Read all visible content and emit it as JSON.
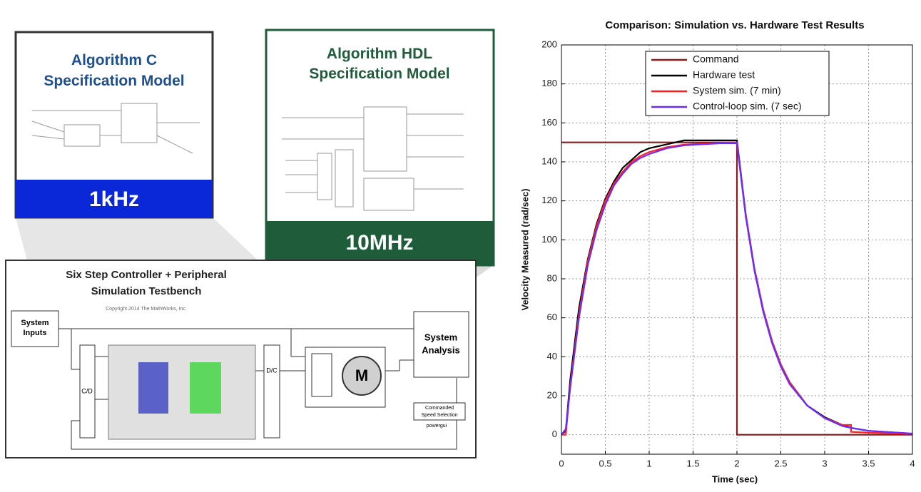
{
  "chart_data": {
    "type": "line",
    "title": "Comparison: Simulation vs. Hardware Test Results",
    "x_label": "Time (sec)",
    "y_label": "Velocity Measured (rad/sec)",
    "x": [
      0,
      0.05,
      0.1,
      0.2,
      0.3,
      0.4,
      0.5,
      0.6,
      0.7,
      0.8,
      0.9,
      1.0,
      1.2,
      1.4,
      1.6,
      1.8,
      2.0,
      2.0,
      2.1,
      2.2,
      2.3,
      2.4,
      2.5,
      2.6,
      2.8,
      3.0,
      3.2,
      3.3,
      3.3,
      3.5,
      4.0
    ],
    "series": [
      {
        "name": "Command",
        "color": "#8b1a1a",
        "values": [
          150,
          150,
          150,
          150,
          150,
          150,
          150,
          150,
          150,
          150,
          150,
          150,
          150,
          150,
          150,
          150,
          150,
          0,
          0,
          0,
          0,
          0,
          0,
          0,
          0,
          0,
          0,
          0,
          0,
          0,
          0
        ]
      },
      {
        "name": "Hardware test",
        "color": "#000000",
        "values": [
          0,
          2,
          28,
          65,
          90,
          108,
          121,
          130,
          137,
          141,
          145,
          147,
          149,
          151,
          151,
          151,
          151,
          151,
          113,
          85,
          64,
          48,
          36,
          27,
          15,
          9,
          5,
          3.5,
          3.5,
          2,
          0.5
        ]
      },
      {
        "name": "System sim. (7 min)",
        "color": "#ff2020",
        "values": [
          0,
          0,
          25,
          62,
          89,
          107,
          120,
          129,
          135,
          140,
          143,
          145,
          147.5,
          148.8,
          149.4,
          149.7,
          150,
          150,
          113,
          85,
          64,
          48,
          36,
          27,
          15,
          8.6,
          5,
          5,
          1.5,
          1,
          0.5
        ]
      },
      {
        "name": "Control-loop sim. (7 sec)",
        "color": "#6a2cff",
        "values": [
          0,
          3,
          24,
          60,
          87,
          105,
          118,
          128,
          134,
          139,
          142,
          144,
          147,
          148.5,
          149,
          149.5,
          149.5,
          149.5,
          112,
          84,
          63,
          47,
          35,
          26,
          15,
          8.5,
          4.5,
          3.5,
          3.5,
          2,
          0.6
        ]
      }
    ],
    "xlim": [
      0,
      4
    ],
    "xticks": [
      0,
      0.5,
      1,
      1.5,
      2,
      2.5,
      3,
      3.5,
      4
    ],
    "ylim": [
      -10,
      200
    ],
    "yticks": [
      0,
      20,
      40,
      60,
      80,
      100,
      120,
      140,
      160,
      180,
      200
    ],
    "grid": true,
    "legend": "top"
  },
  "diagram": {
    "card_c": {
      "title_lines": [
        "Algorithm C",
        "Specification Model"
      ],
      "rate": "1kHz"
    },
    "card_hdl": {
      "title_lines": [
        "Algorithm HDL",
        "Specification Model"
      ],
      "rate": "10MHz"
    },
    "testbench": {
      "title_lines": [
        "Six Step Controller + Peripheral",
        "Simulation Testbench"
      ],
      "copyright": "Copyright 2014 The MathWorks, Inc.",
      "inputs": [
        "System",
        "Inputs"
      ],
      "cd": "C/D",
      "dc": "D/C",
      "motor": "M",
      "analysis": [
        "System",
        "Analysis"
      ],
      "speed": [
        "Commanded",
        "Speed Selection"
      ],
      "powergui": "powergui"
    }
  }
}
